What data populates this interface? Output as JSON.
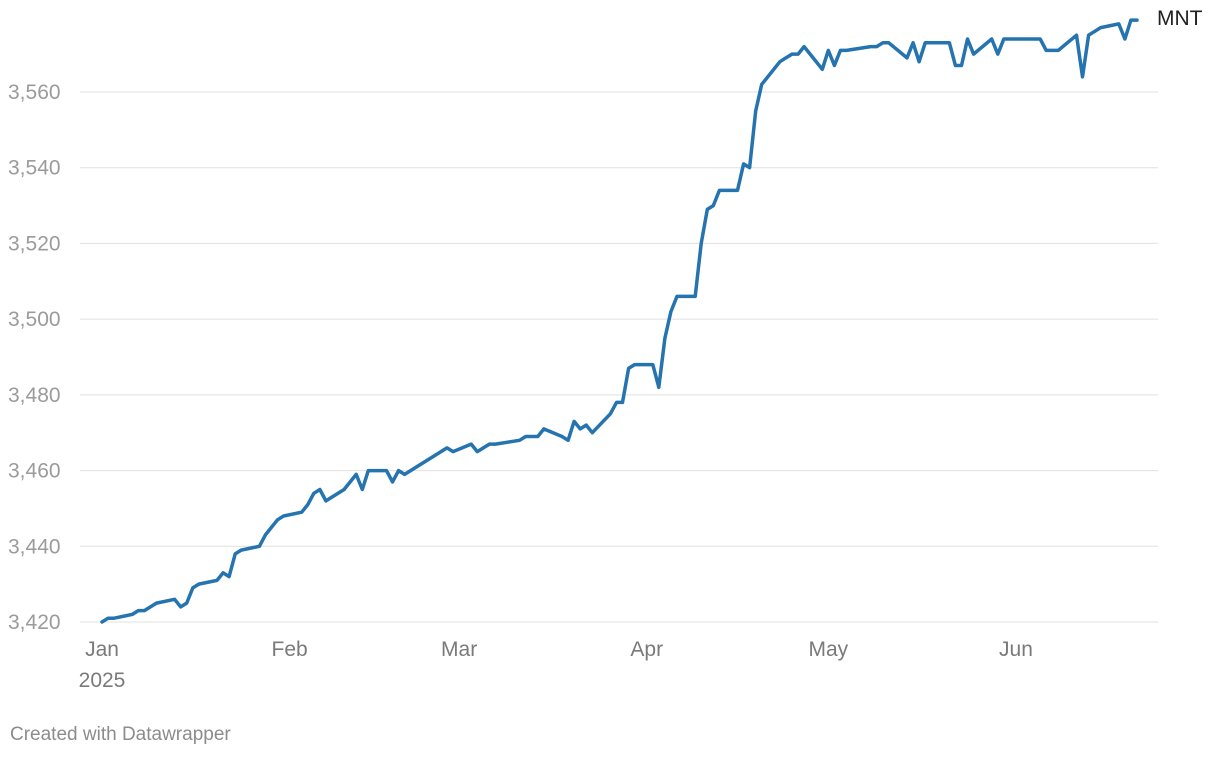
{
  "chart_data": {
    "type": "line",
    "title": "",
    "xlabel": "",
    "ylabel": "",
    "ylim": [
      3420,
      3580
    ],
    "xlim": [
      "2025-01-01",
      "2025-06-20"
    ],
    "grid": true,
    "yticks": [
      3420,
      3440,
      3460,
      3480,
      3500,
      3520,
      3540,
      3560
    ],
    "ytick_labels": [
      "3,420",
      "3,440",
      "3,460",
      "3,480",
      "3,500",
      "3,520",
      "3,540",
      "3,560"
    ],
    "xticks": [
      {
        "date": "2025-01-01",
        "label": "Jan",
        "sublabel": "2025"
      },
      {
        "date": "2025-02-01",
        "label": "Feb",
        "sublabel": ""
      },
      {
        "date": "2025-03-01",
        "label": "Mar",
        "sublabel": ""
      },
      {
        "date": "2025-04-01",
        "label": "Apr",
        "sublabel": ""
      },
      {
        "date": "2025-05-01",
        "label": "May",
        "sublabel": ""
      },
      {
        "date": "2025-06-01",
        "label": "Jun",
        "sublabel": ""
      }
    ],
    "series": [
      {
        "name": "MNT",
        "color": "#2574b0",
        "points": [
          [
            "2025-01-01",
            3420
          ],
          [
            "2025-01-02",
            3421
          ],
          [
            "2025-01-03",
            3421
          ],
          [
            "2025-01-06",
            3422
          ],
          [
            "2025-01-07",
            3423
          ],
          [
            "2025-01-08",
            3423
          ],
          [
            "2025-01-10",
            3425
          ],
          [
            "2025-01-13",
            3426
          ],
          [
            "2025-01-14",
            3424
          ],
          [
            "2025-01-15",
            3425
          ],
          [
            "2025-01-16",
            3429
          ],
          [
            "2025-01-17",
            3430
          ],
          [
            "2025-01-20",
            3431
          ],
          [
            "2025-01-21",
            3433
          ],
          [
            "2025-01-22",
            3432
          ],
          [
            "2025-01-23",
            3438
          ],
          [
            "2025-01-24",
            3439
          ],
          [
            "2025-01-27",
            3440
          ],
          [
            "2025-01-28",
            3443
          ],
          [
            "2025-01-30",
            3447
          ],
          [
            "2025-01-31",
            3448
          ],
          [
            "2025-02-03",
            3449
          ],
          [
            "2025-02-04",
            3451
          ],
          [
            "2025-02-05",
            3454
          ],
          [
            "2025-02-06",
            3455
          ],
          [
            "2025-02-07",
            3452
          ],
          [
            "2025-02-10",
            3455
          ],
          [
            "2025-02-12",
            3459
          ],
          [
            "2025-02-13",
            3455
          ],
          [
            "2025-02-14",
            3460
          ],
          [
            "2025-02-17",
            3460
          ],
          [
            "2025-02-18",
            3457
          ],
          [
            "2025-02-19",
            3460
          ],
          [
            "2025-02-20",
            3459
          ],
          [
            "2025-02-27",
            3466
          ],
          [
            "2025-02-28",
            3465
          ],
          [
            "2025-03-03",
            3467
          ],
          [
            "2025-03-04",
            3465
          ],
          [
            "2025-03-06",
            3467
          ],
          [
            "2025-03-07",
            3467
          ],
          [
            "2025-03-11",
            3468
          ],
          [
            "2025-03-12",
            3469
          ],
          [
            "2025-03-14",
            3469
          ],
          [
            "2025-03-15",
            3471
          ],
          [
            "2025-03-18",
            3469
          ],
          [
            "2025-03-19",
            3468
          ],
          [
            "2025-03-20",
            3473
          ],
          [
            "2025-03-21",
            3471
          ],
          [
            "2025-03-22",
            3472
          ],
          [
            "2025-03-23",
            3470
          ],
          [
            "2025-03-26",
            3475
          ],
          [
            "2025-03-27",
            3478
          ],
          [
            "2025-03-28",
            3478
          ],
          [
            "2025-03-29",
            3487
          ],
          [
            "2025-03-30",
            3488
          ],
          [
            "2025-04-02",
            3488
          ],
          [
            "2025-04-03",
            3482
          ],
          [
            "2025-04-04",
            3495
          ],
          [
            "2025-04-05",
            3502
          ],
          [
            "2025-04-06",
            3506
          ],
          [
            "2025-04-09",
            3506
          ],
          [
            "2025-04-10",
            3520
          ],
          [
            "2025-04-11",
            3529
          ],
          [
            "2025-04-12",
            3530
          ],
          [
            "2025-04-13",
            3534
          ],
          [
            "2025-04-16",
            3534
          ],
          [
            "2025-04-17",
            3541
          ],
          [
            "2025-04-18",
            3540
          ],
          [
            "2025-04-19",
            3555
          ],
          [
            "2025-04-20",
            3562
          ],
          [
            "2025-04-23",
            3568
          ],
          [
            "2025-04-24",
            3569
          ],
          [
            "2025-04-25",
            3570
          ],
          [
            "2025-04-26",
            3570
          ],
          [
            "2025-04-27",
            3572
          ],
          [
            "2025-04-30",
            3566
          ],
          [
            "2025-05-01",
            3571
          ],
          [
            "2025-05-02",
            3567
          ],
          [
            "2025-05-03",
            3571
          ],
          [
            "2025-05-04",
            3571
          ],
          [
            "2025-05-08",
            3572
          ],
          [
            "2025-05-09",
            3572
          ],
          [
            "2025-05-10",
            3573
          ],
          [
            "2025-05-11",
            3573
          ],
          [
            "2025-05-14",
            3569
          ],
          [
            "2025-05-15",
            3573
          ],
          [
            "2025-05-16",
            3568
          ],
          [
            "2025-05-17",
            3573
          ],
          [
            "2025-05-21",
            3573
          ],
          [
            "2025-05-22",
            3567
          ],
          [
            "2025-05-23",
            3567
          ],
          [
            "2025-05-24",
            3574
          ],
          [
            "2025-05-25",
            3570
          ],
          [
            "2025-05-28",
            3574
          ],
          [
            "2025-05-29",
            3570
          ],
          [
            "2025-05-30",
            3574
          ],
          [
            "2025-06-05",
            3574
          ],
          [
            "2025-06-06",
            3571
          ],
          [
            "2025-06-08",
            3571
          ],
          [
            "2025-06-11",
            3575
          ],
          [
            "2025-06-12",
            3564
          ],
          [
            "2025-06-13",
            3575
          ],
          [
            "2025-06-15",
            3577
          ],
          [
            "2025-06-18",
            3578
          ],
          [
            "2025-06-19",
            3574
          ],
          [
            "2025-06-20",
            3579
          ],
          [
            "2025-06-21",
            3579
          ]
        ]
      }
    ]
  },
  "footer": {
    "credit": "Created with Datawrapper"
  }
}
